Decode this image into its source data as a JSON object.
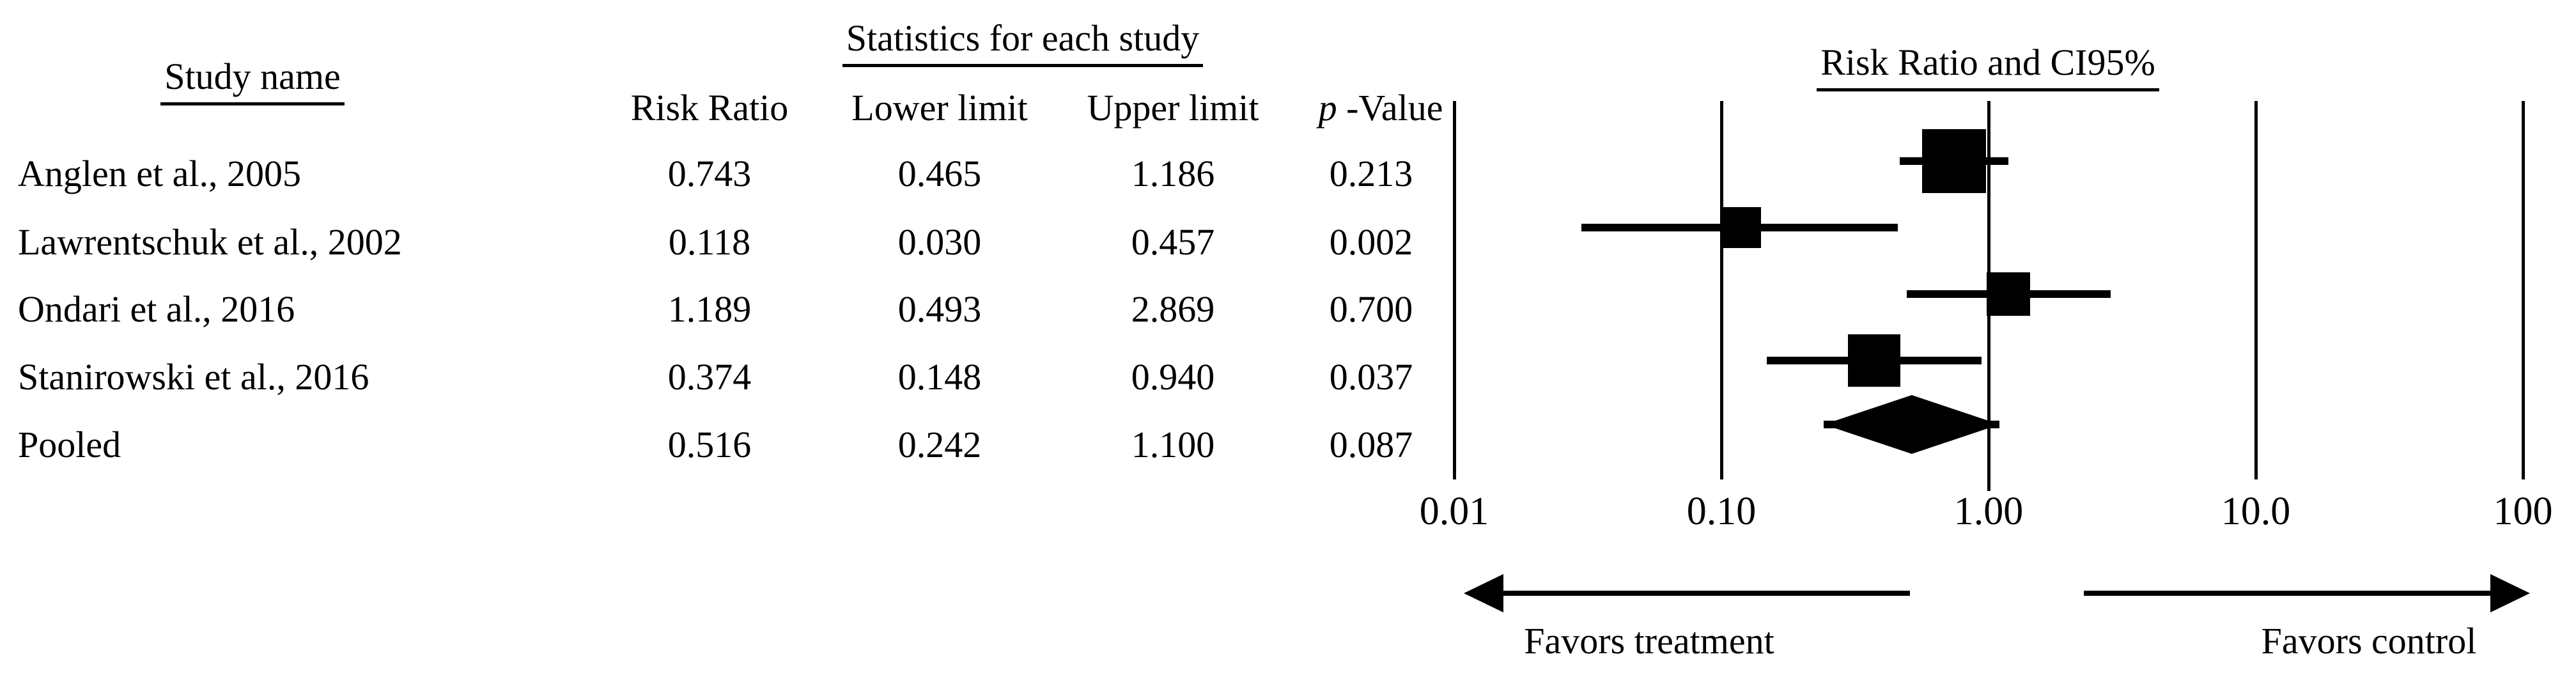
{
  "figure": {
    "table": {
      "study_header": "Study name",
      "stats_header": "Statistics for each study",
      "col_risk_ratio": "Risk Ratio",
      "col_lower": "Lower limit",
      "col_upper": "Upper limit",
      "col_p_italic": "p",
      "col_p_rest": " -Value",
      "rows": [
        {
          "study": "Anglen et al., 2005",
          "risk_ratio": "0.743",
          "lower": "0.465",
          "upper": "1.186",
          "p": "0.213"
        },
        {
          "study": "Lawrentschuk et al., 2002",
          "risk_ratio": "0.118",
          "lower": "0.030",
          "upper": "0.457",
          "p": "0.002"
        },
        {
          "study": "Ondari et al., 2016",
          "risk_ratio": "1.189",
          "lower": "0.493",
          "upper": "2.869",
          "p": "0.700"
        },
        {
          "study": "Stanirowski et al., 2016",
          "risk_ratio": "0.374",
          "lower": "0.148",
          "upper": "0.940",
          "p": "0.037"
        },
        {
          "study": "Pooled",
          "risk_ratio": "0.516",
          "lower": "0.242",
          "upper": "1.100",
          "p": "0.087"
        }
      ]
    },
    "plot": {
      "title": "Risk Ratio and CI95%",
      "favors_left": "Favors treatment",
      "favors_right": "Favors control"
    }
  },
  "chart_data": {
    "type": "forest",
    "title": "Risk Ratio and CI95%",
    "x_scale": "log10",
    "x_ticks": [
      0.01,
      0.1,
      1,
      10,
      100
    ],
    "x_tick_labels": [
      "0.01",
      "0.10",
      "1.00",
      "10.0",
      "100"
    ],
    "grid": "vertical-line-at-each-tick",
    "legend_position": "none",
    "arrow_left_label": "Favors treatment",
    "arrow_right_label": "Favors control",
    "columns": [
      "Risk Ratio",
      "Lower limit",
      "Upper limit",
      "p-Value"
    ],
    "studies": [
      {
        "name": "Anglen et al., 2005",
        "risk_ratio": 0.743,
        "ci_lower": 0.465,
        "ci_upper": 1.186,
        "p_value": 0.213,
        "marker": "square",
        "marker_size_px": 100
      },
      {
        "name": "Lawrentschuk et al., 2002",
        "risk_ratio": 0.118,
        "ci_lower": 0.03,
        "ci_upper": 0.457,
        "p_value": 0.002,
        "marker": "square",
        "marker_size_px": 64
      },
      {
        "name": "Ondari et al., 2016",
        "risk_ratio": 1.189,
        "ci_lower": 0.493,
        "ci_upper": 2.869,
        "p_value": 0.7,
        "marker": "square",
        "marker_size_px": 68
      },
      {
        "name": "Stanirowski et al., 2016",
        "risk_ratio": 0.374,
        "ci_lower": 0.148,
        "ci_upper": 0.94,
        "p_value": 0.037,
        "marker": "square",
        "marker_size_px": 82
      },
      {
        "name": "Pooled",
        "risk_ratio": 0.516,
        "ci_lower": 0.242,
        "ci_upper": 1.1,
        "p_value": 0.087,
        "marker": "diamond"
      }
    ]
  }
}
